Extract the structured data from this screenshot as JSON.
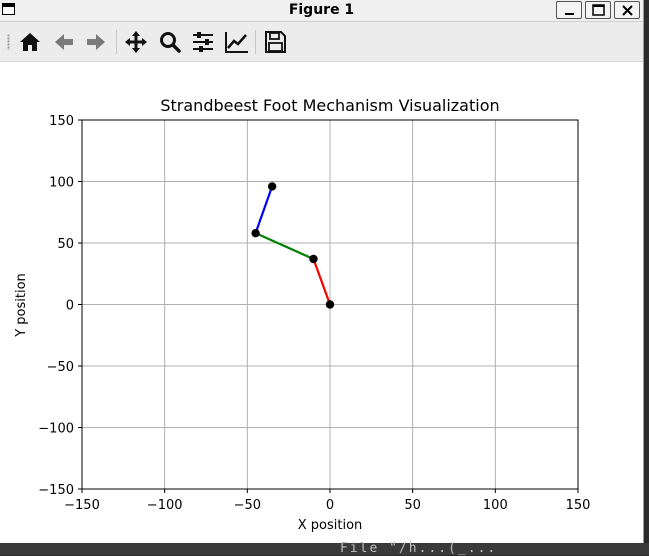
{
  "window": {
    "title": "Figure 1"
  },
  "toolbar": {
    "buttons": [
      {
        "name": "home",
        "icon": "home-icon"
      },
      {
        "name": "back",
        "icon": "arrow-left-icon"
      },
      {
        "name": "forward",
        "icon": "arrow-right-icon"
      },
      {
        "name": "pan",
        "icon": "move-icon"
      },
      {
        "name": "zoom",
        "icon": "magnifier-icon"
      },
      {
        "name": "configure-subplots",
        "icon": "sliders-icon"
      },
      {
        "name": "edit-axis",
        "icon": "line-chart-icon"
      },
      {
        "name": "save",
        "icon": "floppy-disk-icon"
      }
    ]
  },
  "chart_data": {
    "type": "line",
    "title": "Strandbeest Foot Mechanism Visualization",
    "xlabel": "X position",
    "ylabel": "Y position",
    "xlim": [
      -150,
      150
    ],
    "ylim": [
      -150,
      150
    ],
    "xticks": [
      "−150",
      "−100",
      "−50",
      "0",
      "50",
      "100",
      "150"
    ],
    "yticks": [
      "150",
      "100",
      "50",
      "0",
      "−50",
      "−100",
      "−150"
    ],
    "xtick_values": [
      -150,
      -100,
      -50,
      0,
      50,
      100,
      150
    ],
    "ytick_values": [
      150,
      100,
      50,
      0,
      -50,
      -100,
      -150
    ],
    "grid": true,
    "series": [
      {
        "color": "#0000ff",
        "points": [
          [
            -35,
            96
          ],
          [
            -45,
            58
          ]
        ]
      },
      {
        "color": "#008000",
        "points": [
          [
            -45,
            58
          ],
          [
            -10,
            37
          ]
        ]
      },
      {
        "color": "#ff0000",
        "points": [
          [
            -10,
            37
          ],
          [
            0,
            0
          ]
        ]
      }
    ],
    "joints": [
      [
        -35,
        96
      ],
      [
        -45,
        58
      ],
      [
        -10,
        37
      ],
      [
        0,
        0
      ]
    ],
    "marker_color": "#000000"
  },
  "terminal_fragment": "File \"/h...(_..."
}
